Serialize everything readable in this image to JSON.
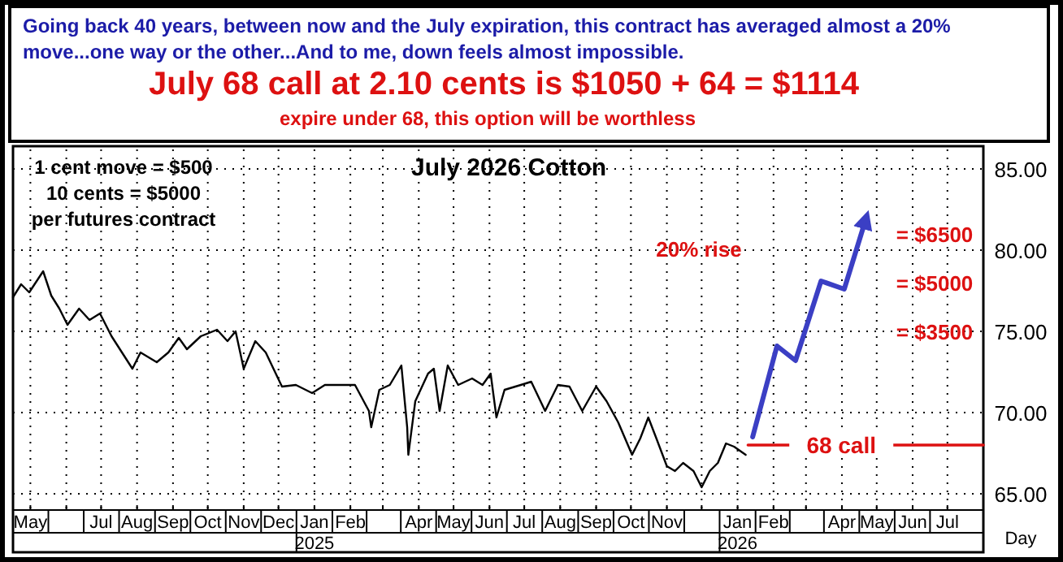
{
  "chart_data": {
    "type": "line",
    "title": "July 2026 Cotton",
    "subtitle": "Going back 40 years, between now and the July expiration, this contract has averaged almost a 20% move...one way or the other...And to me, down feels almost impossible.",
    "xlabel": "Day",
    "annotations": [
      "July 68 call at 2.10 cents is $1050 + 64 = $1114",
      "expire under 68, this option will be worthless",
      "1 cent move = $500",
      "10 cents = $5000",
      "per futures contract",
      "20% rise",
      "= $6500",
      "= $5000",
      "= $3500"
    ],
    "xlim": [
      "2024-05-01",
      "2026-08-16"
    ],
    "xticks": [
      {
        "value": "2024-05-16",
        "label": "May"
      },
      {
        "value": "2024-06-16",
        "label": null
      },
      {
        "value": "2024-07-16",
        "label": "Jul"
      },
      {
        "value": "2024-08-16",
        "label": "Aug"
      },
      {
        "value": "2024-09-16",
        "label": "Sep"
      },
      {
        "value": "2024-10-16",
        "label": "Oct"
      },
      {
        "value": "2024-11-16",
        "label": "Nov"
      },
      {
        "value": "2024-12-16",
        "label": "Dec"
      },
      {
        "value": "2025-01-16",
        "label": "Jan\n2025"
      },
      {
        "value": "2025-02-16",
        "label": "Feb"
      },
      {
        "value": "2025-03-16",
        "label": null
      },
      {
        "value": "2025-04-16",
        "label": "Apr"
      },
      {
        "value": "2025-05-16",
        "label": "May"
      },
      {
        "value": "2025-06-16",
        "label": "Jun"
      },
      {
        "value": "2025-07-16",
        "label": "Jul"
      },
      {
        "value": "2025-08-16",
        "label": "Aug"
      },
      {
        "value": "2025-09-16",
        "label": "Sep"
      },
      {
        "value": "2025-10-16",
        "label": "Oct"
      },
      {
        "value": "2025-11-16",
        "label": "Nov"
      },
      {
        "value": "2025-12-16",
        "label": null
      },
      {
        "value": "2026-01-16",
        "label": "Jan\n2026"
      },
      {
        "value": "2026-02-16",
        "label": "Feb"
      },
      {
        "value": "2026-03-16",
        "label": null
      },
      {
        "value": "2026-04-16",
        "label": "Apr"
      },
      {
        "value": "2026-05-16",
        "label": "May"
      },
      {
        "value": "2026-06-16",
        "label": "Jun"
      },
      {
        "value": "2026-07-16",
        "label": "Jul"
      }
    ],
    "ylim": [
      64,
      86.2
    ],
    "yticks": [
      {
        "value": 65,
        "label": "65.00"
      },
      {
        "value": 70,
        "label": "70.00"
      },
      {
        "value": 75,
        "label": "75.00"
      },
      {
        "value": 80,
        "label": "80.00"
      },
      {
        "value": 85,
        "label": "85.00"
      }
    ],
    "grid": true,
    "legend": false,
    "marker": "none",
    "line_style": "solid",
    "series": [
      {
        "color": "#000000",
        "x": [
          "2024-05-01",
          "2024-05-08",
          "2024-05-15",
          "2024-05-27",
          "2024-06-03",
          "2024-06-10",
          "2024-06-17",
          "2024-06-27",
          "2024-07-06",
          "2024-07-15",
          "2024-07-25",
          "2024-08-03",
          "2024-08-12",
          "2024-08-19",
          "2024-09-02",
          "2024-09-12",
          "2024-09-21",
          "2024-09-28",
          "2024-10-10",
          "2024-10-24",
          "2024-11-02",
          "2024-11-09",
          "2024-11-16",
          "2024-11-26",
          "2024-12-05",
          "2024-12-19",
          "2024-12-31",
          "2025-01-14",
          "2025-01-25",
          "2025-02-08",
          "2025-02-20",
          "2025-03-04",
          "2025-03-06",
          "2025-03-13",
          "2025-03-22",
          "2025-04-01",
          "2025-04-06",
          "2025-04-07",
          "2025-04-13",
          "2025-04-24",
          "2025-04-29",
          "2025-05-04",
          "2025-05-11",
          "2025-05-20",
          "2025-06-01",
          "2025-06-10",
          "2025-06-17",
          "2025-06-22",
          "2025-06-29",
          "2025-07-13",
          "2025-07-22",
          "2025-08-03",
          "2025-08-14",
          "2025-08-24",
          "2025-09-04",
          "2025-09-16",
          "2025-09-25",
          "2025-10-05",
          "2025-10-17",
          "2025-10-24",
          "2025-10-31",
          "2025-11-07",
          "2025-11-16",
          "2025-11-23",
          "2025-11-30",
          "2025-12-09",
          "2025-12-16",
          "2025-12-23",
          "2025-12-30",
          "2026-01-06",
          "2026-01-13",
          "2026-01-23"
        ],
        "values": [
          77.1,
          77.9,
          77.4,
          78.7,
          77.2,
          76.4,
          75.4,
          76.4,
          75.7,
          76.1,
          74.7,
          73.7,
          72.7,
          73.7,
          73.1,
          73.7,
          74.6,
          73.9,
          74.7,
          75.1,
          74.4,
          75.0,
          72.7,
          74.4,
          73.7,
          71.6,
          71.7,
          71.2,
          71.7,
          71.7,
          71.7,
          70.1,
          69.1,
          71.4,
          71.7,
          72.9,
          69.1,
          67.4,
          70.7,
          72.4,
          72.7,
          70.1,
          72.9,
          71.7,
          72.1,
          71.7,
          72.4,
          69.7,
          71.4,
          71.7,
          71.9,
          70.1,
          71.7,
          71.6,
          70.1,
          71.6,
          70.7,
          69.4,
          67.4,
          68.4,
          69.7,
          68.4,
          66.7,
          66.4,
          66.9,
          66.4,
          65.4,
          66.4,
          66.9,
          68.1,
          67.9,
          67.4
        ]
      },
      {
        "name": "68 call",
        "color": "#dd1111",
        "x": [
          "2026-01-25",
          "2026-08-16"
        ],
        "values": [
          68,
          68
        ]
      },
      {
        "color": "#3b3fc4",
        "x": [
          "2026-01-29",
          "2026-02-19",
          "2026-03-07",
          "2026-03-29",
          "2026-04-18",
          "2026-05-07"
        ],
        "values": [
          68.5,
          74.1,
          73.2,
          78.1,
          77.6,
          82
        ]
      }
    ]
  }
}
